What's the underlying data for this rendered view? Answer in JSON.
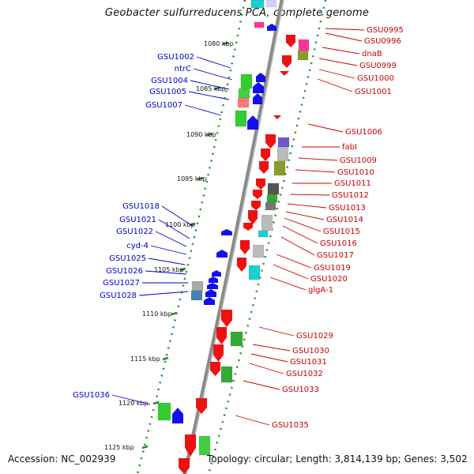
{
  "title": "Geobacter sulfurreducens PCA, complete genome",
  "accession": "Accession: NC_002939",
  "topology": "Topology: circular; Length: 3,814,139 bp; Genes: 3,502",
  "colors": {
    "backbone": "#8a8a8a",
    "tick": "#2a8a2a",
    "forward_label": "#0000cc",
    "reverse_label": "#cc0000"
  },
  "scale_labels": [
    "1080 kbp",
    "1085 kbp",
    "1090 kbp",
    "1095 kbp",
    "1100 kbp",
    "1105 kbp",
    "1110 kbp",
    "1115 kbp",
    "1120 kbp",
    "1125 kbp"
  ],
  "forward_genes": [
    "GSU1002",
    "ntrC",
    "GSU1004",
    "GSU1005",
    "GSU1007",
    "GSU1018",
    "GSU1021",
    "GSU1022",
    "cyd-4",
    "GSU1025",
    "GSU1026",
    "GSU1027",
    "GSU1028",
    "GSU1036"
  ],
  "reverse_genes": [
    "GSU0995",
    "GSU0996",
    "dnaB",
    "GSU0999",
    "GSU1000",
    "GSU1001",
    "GSU1006",
    "fabI",
    "GSU1009",
    "GSU1010",
    "GSU1011",
    "GSU1012",
    "GSU1013",
    "GSU1014",
    "GSU1015",
    "GSU1016",
    "GSU1017",
    "GSU1019",
    "GSU1020",
    "glgA-1",
    "GSU1029",
    "GSU1030",
    "GSU1031",
    "GSU1032",
    "GSU1033",
    "GSU1035"
  ]
}
